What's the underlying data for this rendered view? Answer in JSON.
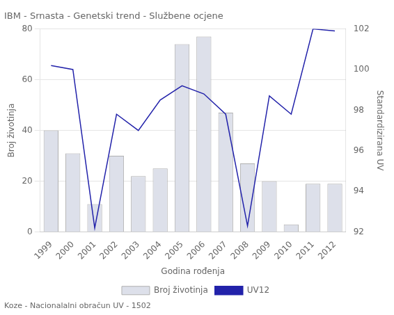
{
  "chart_data": {
    "type": "bar",
    "title": "IBM - Srnasta - Genetski trend - Službene ocjene",
    "xlabel": "Godina rođenja",
    "ylabel": "Broj životinja",
    "y2label": "Standardizirana UV",
    "annotations": [
      "Koze - Nacionalalni obračun UV - 1502"
    ],
    "categories": [
      1999,
      2000,
      2001,
      2002,
      2003,
      2004,
      2005,
      2006,
      2007,
      2008,
      2009,
      2010,
      2011,
      2012
    ],
    "series": [
      {
        "name": "Broj životinja",
        "type": "bar",
        "color": "#dde0ea",
        "values": [
          40,
          31,
          11,
          30,
          22,
          25,
          74,
          77,
          47,
          27,
          20,
          3,
          19,
          19
        ]
      },
      {
        "name": "UV12",
        "type": "line",
        "axis": "y2",
        "color": "#2222aa",
        "values": [
          100.2,
          100.0,
          92.2,
          97.8,
          97.0,
          98.5,
          99.2,
          98.8,
          97.8,
          92.3,
          98.7,
          97.8,
          102.0,
          101.9
        ]
      }
    ],
    "ylim": [
      0,
      80
    ],
    "yticks": [
      0,
      20,
      40,
      60,
      80
    ],
    "y2lim": [
      92,
      102
    ],
    "y2ticks": [
      92,
      94,
      96,
      98,
      100,
      102
    ],
    "grid": true,
    "legend": "bottom"
  }
}
